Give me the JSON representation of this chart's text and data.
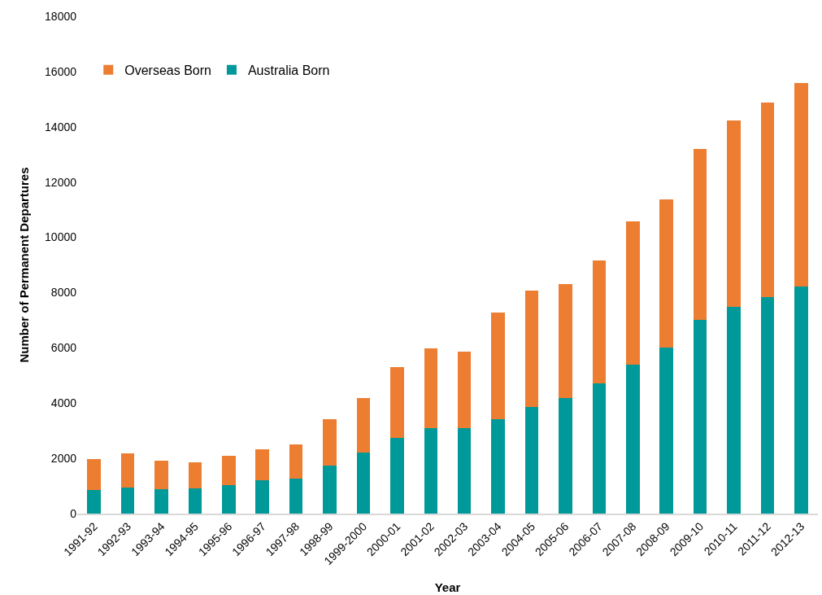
{
  "chart_data": {
    "type": "bar",
    "stacked": true,
    "xlabel": "Year",
    "ylabel": "Number of Permanent Departures",
    "categories": [
      "1991-92",
      "1992-93",
      "1993-94",
      "1994-95",
      "1995-96",
      "1996-97",
      "1997-98",
      "1998-99",
      "1999-2000",
      "2000-01",
      "2001-02",
      "2002-03",
      "2003-04",
      "2004-05",
      "2005-06",
      "2006-07",
      "2007-08",
      "2008-09",
      "2009-10",
      "2010-11",
      "2011-12",
      "2012-13"
    ],
    "series": [
      {
        "name": "Australia Born",
        "color": "#009999",
        "values": [
          850,
          950,
          870,
          920,
          1040,
          1200,
          1260,
          1750,
          2200,
          2750,
          3090,
          3090,
          3420,
          3850,
          4170,
          4700,
          5400,
          6010,
          7000,
          7470,
          7840,
          8230
        ]
      },
      {
        "name": "Overseas Born",
        "color": "#ed7d31",
        "values": [
          1130,
          1220,
          1050,
          950,
          1040,
          1140,
          1250,
          1680,
          1980,
          2540,
          2890,
          2780,
          3850,
          4210,
          4150,
          4460,
          5190,
          5360,
          6200,
          6770,
          7040,
          7340
        ]
      }
    ],
    "ylim": [
      0,
      18000
    ],
    "yticks": [
      0,
      2000,
      4000,
      6000,
      8000,
      10000,
      12000,
      14000,
      16000,
      18000
    ],
    "grid": false,
    "legend": "top left"
  }
}
